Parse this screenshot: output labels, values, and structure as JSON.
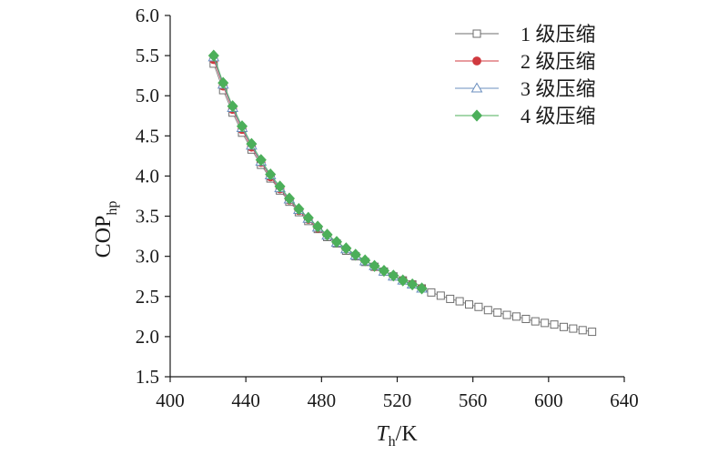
{
  "chart_data": {
    "type": "line",
    "xlabel": {
      "symbol": "T",
      "subscript": "h",
      "unit": "/K"
    },
    "ylabel": {
      "symbol": "COP",
      "subscript": "hp"
    },
    "xlim": [
      400,
      640
    ],
    "ylim": [
      1.5,
      6.0
    ],
    "xticks": [
      "400",
      "440",
      "480",
      "520",
      "560",
      "600",
      "640"
    ],
    "yticks": [
      "1.5",
      "2.0",
      "2.5",
      "3.0",
      "3.5",
      "4.0",
      "4.5",
      "5.0",
      "5.5",
      "6.0"
    ],
    "grid": false,
    "legend": "top-right",
    "series": [
      {
        "name": "1 级压缩",
        "marker": "open-square",
        "color": "#6e6e6e",
        "x": [
          423,
          428,
          433,
          438,
          443,
          448,
          453,
          458,
          463,
          468,
          473,
          478,
          483,
          488,
          493,
          498,
          503,
          508,
          513,
          518,
          523,
          528,
          533,
          538,
          543,
          548,
          553,
          558,
          563,
          568,
          573,
          578,
          583,
          588,
          593,
          598,
          603,
          608,
          613,
          618,
          623
        ],
        "y": [
          5.4,
          5.07,
          4.79,
          4.54,
          4.33,
          4.14,
          3.97,
          3.82,
          3.68,
          3.55,
          3.44,
          3.34,
          3.24,
          3.16,
          3.07,
          3.0,
          2.93,
          2.87,
          2.81,
          2.75,
          2.7,
          2.65,
          2.6,
          2.55,
          2.51,
          2.47,
          2.44,
          2.4,
          2.37,
          2.33,
          2.3,
          2.27,
          2.25,
          2.22,
          2.19,
          2.17,
          2.15,
          2.12,
          2.1,
          2.08,
          2.06
        ]
      },
      {
        "name": "2 级压缩",
        "marker": "filled-circle",
        "color": "#d0393f",
        "x": [
          423,
          428,
          433,
          438,
          443,
          448,
          453,
          458,
          463,
          468,
          473,
          478,
          483,
          488,
          493,
          498,
          503,
          508,
          513,
          518,
          523,
          528,
          533
        ],
        "y": [
          5.45,
          5.12,
          4.83,
          4.58,
          4.36,
          4.17,
          3.99,
          3.84,
          3.7,
          3.57,
          3.46,
          3.35,
          3.26,
          3.17,
          3.09,
          3.01,
          2.94,
          2.87,
          2.81,
          2.75,
          2.7,
          2.65,
          2.6
        ]
      },
      {
        "name": "3 级压缩",
        "marker": "open-triangle",
        "color": "#6b8fbf",
        "x": [
          423,
          428,
          433,
          438,
          443,
          448,
          453,
          458,
          463,
          468,
          473,
          478,
          483,
          488,
          493,
          498,
          503,
          508,
          513,
          518,
          523,
          528,
          533
        ],
        "y": [
          5.48,
          5.14,
          4.85,
          4.6,
          4.38,
          4.18,
          4.01,
          3.85,
          3.71,
          3.58,
          3.47,
          3.36,
          3.26,
          3.17,
          3.09,
          3.01,
          2.94,
          2.88,
          2.81,
          2.75,
          2.7,
          2.65,
          2.6
        ]
      },
      {
        "name": "4 级压缩",
        "marker": "filled-diamond",
        "color": "#4caf5a",
        "x": [
          423,
          428,
          433,
          438,
          443,
          448,
          453,
          458,
          463,
          468,
          473,
          478,
          483,
          488,
          493,
          498,
          503,
          508,
          513,
          518,
          523,
          528,
          533
        ],
        "y": [
          5.5,
          5.16,
          4.87,
          4.62,
          4.4,
          4.2,
          4.02,
          3.87,
          3.72,
          3.59,
          3.48,
          3.37,
          3.27,
          3.18,
          3.1,
          3.02,
          2.95,
          2.88,
          2.82,
          2.76,
          2.7,
          2.65,
          2.6
        ]
      }
    ]
  }
}
